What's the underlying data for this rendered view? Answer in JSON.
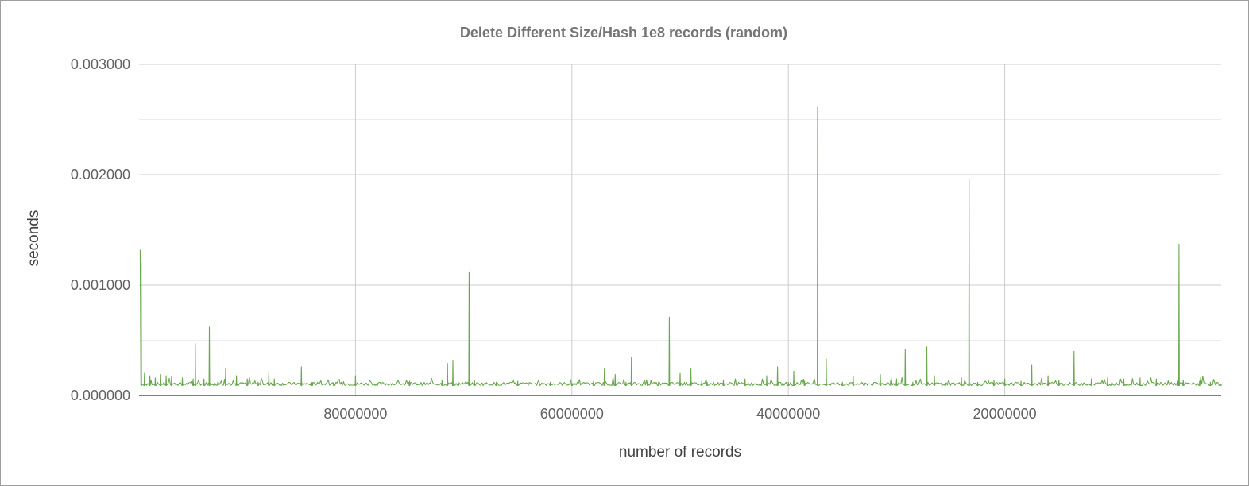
{
  "chart_data": {
    "type": "line",
    "title": "Delete Different Size/Hash 1e8 records (random)",
    "xlabel": "number of records",
    "ylabel": "seconds",
    "x_reversed": true,
    "xlim": [
      100000000,
      0
    ],
    "ylim": [
      0,
      0.003
    ],
    "x_ticks": [
      {
        "value": 80000000,
        "label": "80000000"
      },
      {
        "value": 60000000,
        "label": "60000000"
      },
      {
        "value": 40000000,
        "label": "40000000"
      },
      {
        "value": 20000000,
        "label": "20000000"
      }
    ],
    "y_ticks": [
      {
        "value": 0,
        "label": "0.000000"
      },
      {
        "value": 0.001,
        "label": "0.001000"
      },
      {
        "value": 0.002,
        "label": "0.002000"
      },
      {
        "value": 0.003,
        "label": "0.003000"
      }
    ],
    "y_minor_gridlines": [
      0.0005,
      0.0015,
      0.0025
    ],
    "grid": true,
    "legend": "none",
    "series_color": "#6aa84f",
    "baseline": 9e-05,
    "series": [
      {
        "x": [
          99900000,
          99800000,
          99500000,
          99000000,
          98500000,
          98000000,
          97500000,
          97000000,
          96000000,
          95000000,
          94800000,
          94000000,
          93500000,
          92000000,
          91000000,
          90000000,
          89000000,
          88000000,
          87500000,
          85000000,
          84000000,
          82000000,
          80000000,
          78000000,
          75000000,
          72000000,
          71500000,
          71000000,
          70500000,
          69500000,
          69000000,
          67000000,
          65000000,
          62000000,
          60000000,
          58000000,
          57000000,
          56000000,
          55000000,
          54500000,
          53000000,
          52000000,
          51000000,
          50000000,
          49000000,
          48000000,
          47500000,
          46000000,
          44000000,
          42000000,
          41000000,
          40000000,
          39500000,
          38500000,
          37300000,
          36500000,
          35000000,
          34000000,
          33000000,
          31500000,
          30000000,
          29200000,
          28500000,
          27200000,
          26500000,
          25500000,
          24000000,
          23300000,
          22500000,
          21000000,
          20000000,
          18500000,
          17500000,
          16000000,
          15000000,
          13600000,
          12000000,
          10500000,
          9000000,
          7500000,
          6000000,
          4000000,
          3900000,
          3500000,
          2000000,
          1000000,
          0
        ],
        "y": [
          0.00132,
          0.0012,
          0.0002,
          0.00018,
          0.00016,
          0.00019,
          0.00018,
          0.00017,
          0.00016,
          0.00015,
          0.00047,
          0.00015,
          0.00062,
          0.00025,
          0.00018,
          0.00015,
          0.00012,
          0.00022,
          0.00015,
          0.00026,
          0.00012,
          0.00012,
          0.00018,
          0.00012,
          0.00013,
          0.00014,
          0.00029,
          0.00032,
          0.00012,
          0.00112,
          0.00014,
          0.00012,
          0.00013,
          0.00012,
          0.00011,
          0.00013,
          0.00024,
          0.00019,
          0.00012,
          0.00035,
          0.00012,
          0.00012,
          0.00071,
          0.0002,
          0.00024,
          0.00013,
          0.00012,
          0.00014,
          0.00015,
          0.00018,
          0.00026,
          0.00012,
          0.00022,
          0.00013,
          0.00261,
          0.00033,
          0.00012,
          0.00017,
          0.00012,
          0.00019,
          0.00015,
          0.00042,
          0.00012,
          0.00044,
          0.00018,
          0.00012,
          0.00016,
          0.00196,
          0.00012,
          0.00014,
          0.00015,
          0.00013,
          0.00028,
          0.00018,
          0.00014,
          0.0004,
          0.00015,
          0.00016,
          0.00015,
          0.00016,
          0.00015,
          0.00013,
          0.00137,
          0.00014,
          0.00013,
          0.00012,
          0.0001
        ]
      }
    ]
  }
}
